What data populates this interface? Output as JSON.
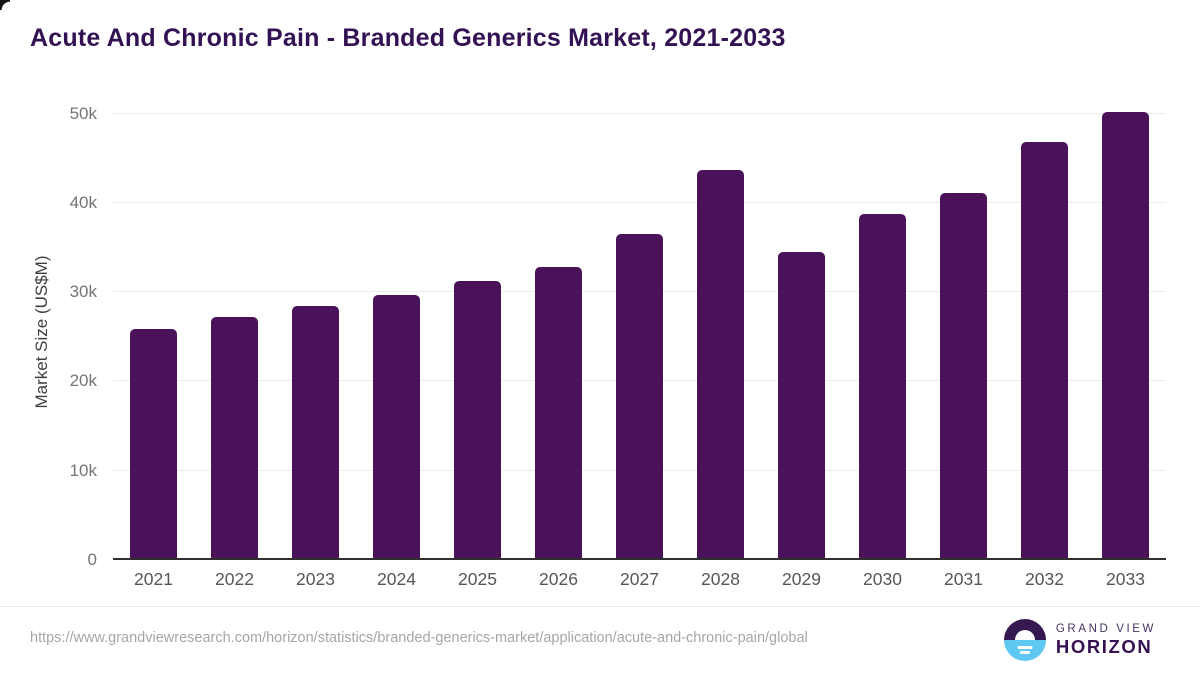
{
  "chart_data": {
    "type": "bar",
    "title": "Acute And Chronic Pain - Branded Generics Market, 2021-2033",
    "ylabel": "Market Size (US$M)",
    "xlabel": "",
    "categories": [
      "2021",
      "2022",
      "2023",
      "2024",
      "2025",
      "2026",
      "2027",
      "2028",
      "2029",
      "2030",
      "2031",
      "2032",
      "2033"
    ],
    "values": [
      25900,
      27200,
      28400,
      29700,
      31200,
      32800,
      36500,
      43700,
      34500,
      38700,
      41100,
      46800,
      50200
    ],
    "ytick_labels": [
      "0",
      "10k",
      "20k",
      "30k",
      "40k",
      "50k"
    ],
    "ytick_values": [
      0,
      10000,
      20000,
      30000,
      40000,
      50000
    ],
    "ylim": [
      0,
      51700
    ],
    "grid": true,
    "legend": "none",
    "bar_color": "#4a1259"
  },
  "footer": {
    "source_url": "https://www.grandviewresearch.com/horizon/statistics/branded-generics-market/application/acute-and-chronic-pain/global",
    "brand_line1": "GRAND VIEW",
    "brand_line2": "HORIZON"
  },
  "colors": {
    "title": "#331254",
    "bar": "#4a1259",
    "logo_purple": "#35184f",
    "logo_blue": "#5fc8f2",
    "axis_line": "#2f2f2f",
    "gridline": "#ececec",
    "tick_text": "#757575"
  }
}
